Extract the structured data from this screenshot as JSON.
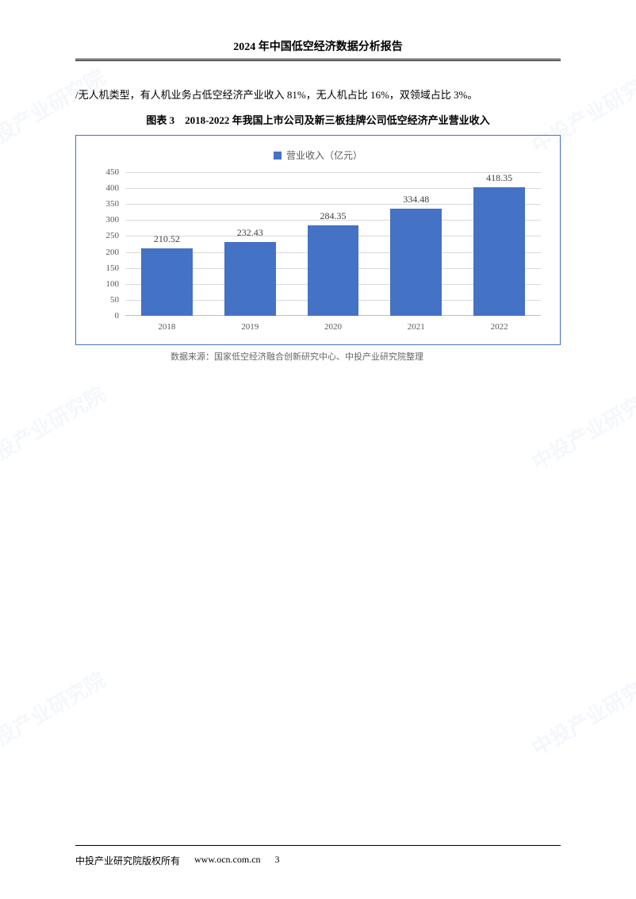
{
  "header": {
    "title": "2024 年中国低空经济数据分析报告"
  },
  "body": {
    "paragraph": "/无人机类型，有人机业务占低空经济产业收入 81%，无人机占比 16%，双领域占比 3%。"
  },
  "chart": {
    "type": "bar",
    "title": "图表 3　2018-2022 年我国上市公司及新三板挂牌公司低空经济产业营业收入",
    "legend_label": "营业收入（亿元）",
    "categories": [
      "2018",
      "2019",
      "2020",
      "2021",
      "2022"
    ],
    "values": [
      210.52,
      232.43,
      284.35,
      334.48,
      418.35
    ],
    "value_labels": [
      "210.52",
      "232.43",
      "284.35",
      "334.48",
      "418.35"
    ],
    "bar_color": "#4472c4",
    "border_color": "#4472c4",
    "grid_color": "#d9d9d9",
    "axis_color": "#bfbfbf",
    "text_color": "#595959",
    "background_color": "#ffffff",
    "ylim": [
      0,
      450
    ],
    "ytick_step": 50,
    "yticks": [
      0,
      50,
      100,
      150,
      200,
      250,
      300,
      350,
      400,
      450
    ],
    "bar_width": 0.62,
    "label_fontsize": 11,
    "value_fontsize": 12,
    "source": "数据来源：国家低空经济融合创新研究中心、中投产业研究院整理"
  },
  "footer": {
    "copyright": "中投产业研究院版权所有",
    "url": "www.ocn.com.cn",
    "page_number": "3"
  },
  "watermark": {
    "text": "中投产业研究院"
  }
}
